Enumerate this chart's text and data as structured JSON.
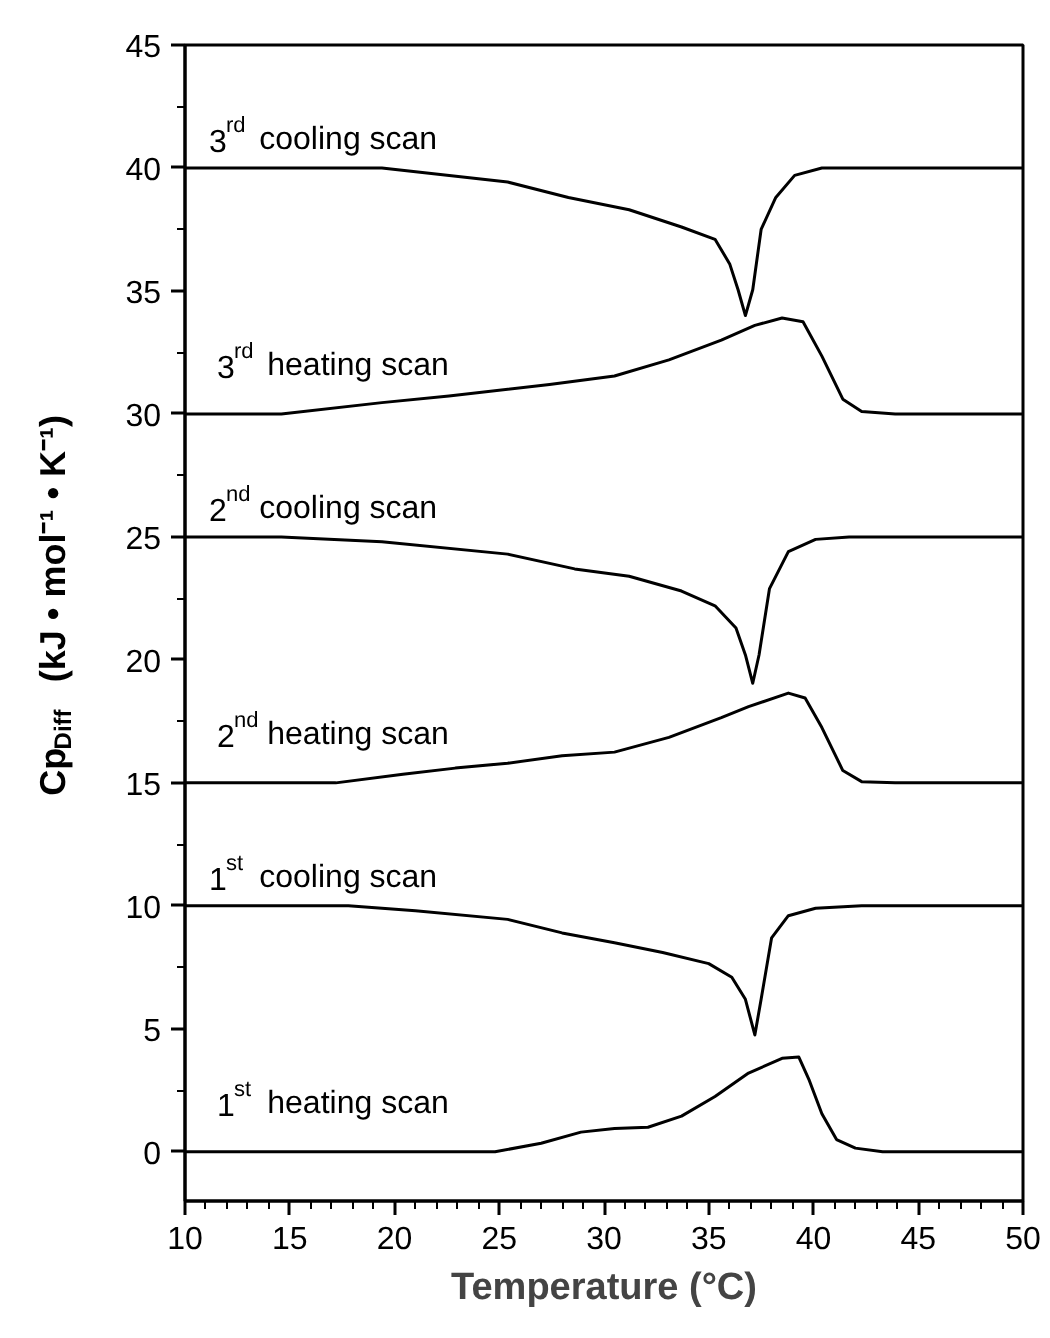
{
  "chart_data": {
    "type": "line",
    "xlabel": "Temperature (°C)",
    "ylabel": "Cp$_{Diff}$ (kJ • mol⁻¹ • K⁻¹)",
    "xlim": [
      10,
      50
    ],
    "ylim": [
      -2,
      45
    ],
    "xticks": [
      10,
      15,
      20,
      25,
      30,
      35,
      40,
      45,
      50
    ],
    "yticks": [
      0,
      5,
      10,
      15,
      20,
      25,
      30,
      35,
      40,
      45
    ],
    "series": [
      {
        "color": "#000000",
        "x": [
          10,
          24.8,
          27.0,
          28.9,
          30.5,
          32.1,
          33.7,
          35.3,
          36.9,
          38.5,
          39.3,
          39.8,
          40.4,
          41.1,
          42.0,
          43.3,
          50
        ],
        "values": [
          0,
          0,
          0.35,
          0.8,
          0.95,
          1.0,
          1.45,
          2.25,
          3.2,
          3.8,
          3.85,
          2.9,
          1.55,
          0.5,
          0.15,
          0,
          0
        ]
      },
      {
        "color": "#000000",
        "x": [
          10,
          17.8,
          21.0,
          25.4,
          28.0,
          30.5,
          32.8,
          35.0,
          36.1,
          36.75,
          37.2,
          37.5,
          38.0,
          38.8,
          40.1,
          42.3,
          50
        ],
        "values": [
          10,
          10,
          9.8,
          9.45,
          8.9,
          8.5,
          8.1,
          7.65,
          7.1,
          6.2,
          4.75,
          6.2,
          8.7,
          9.6,
          9.9,
          10,
          10
        ]
      },
      {
        "color": "#000000",
        "x": [
          10,
          17.2,
          20.4,
          22.9,
          25.4,
          28.0,
          30.5,
          33.1,
          35.6,
          36.9,
          38.8,
          39.6,
          40.4,
          41.4,
          42.3,
          43.9,
          50
        ],
        "values": [
          15,
          15,
          15.35,
          15.6,
          15.8,
          16.1,
          16.25,
          16.85,
          17.65,
          18.1,
          18.65,
          18.45,
          17.25,
          15.5,
          15.05,
          15,
          15
        ]
      },
      {
        "color": "#000000",
        "x": [
          10,
          14.6,
          19.4,
          25.4,
          28.6,
          31.2,
          33.7,
          35.3,
          36.3,
          36.75,
          37.1,
          37.4,
          37.9,
          38.8,
          40.1,
          41.7,
          50
        ],
        "values": [
          25,
          25,
          24.8,
          24.3,
          23.7,
          23.4,
          22.8,
          22.2,
          21.3,
          20.2,
          19.05,
          20.2,
          22.9,
          24.4,
          24.9,
          25,
          25
        ]
      },
      {
        "color": "#000000",
        "x": [
          10,
          14.6,
          19.4,
          22.6,
          27.4,
          30.5,
          33.1,
          35.6,
          37.2,
          38.5,
          39.5,
          40.4,
          41.4,
          42.3,
          43.9,
          50
        ],
        "values": [
          30,
          30,
          30.46,
          30.73,
          31.2,
          31.54,
          32.2,
          33.0,
          33.6,
          33.9,
          33.75,
          32.35,
          30.6,
          30.1,
          30,
          30
        ]
      },
      {
        "color": "#000000",
        "x": [
          10,
          19.4,
          25.4,
          28.3,
          31.2,
          33.7,
          35.3,
          36.0,
          36.4,
          36.75,
          37.1,
          37.5,
          38.2,
          39.1,
          40.4,
          50
        ],
        "values": [
          40,
          40,
          39.43,
          38.8,
          38.3,
          37.6,
          37.1,
          36.1,
          35.05,
          34.0,
          35.05,
          37.5,
          38.8,
          39.7,
          40,
          40
        ]
      }
    ],
    "annotations": [
      "1$^{st}$ heating scan",
      "1$^{st}$ cooling scan",
      "2$^{nd}$ heating scan",
      "2$^{nd}$ cooling scan",
      "3$^{rd}$ heating scan",
      "3$^{rd}$ cooling scan"
    ]
  }
}
